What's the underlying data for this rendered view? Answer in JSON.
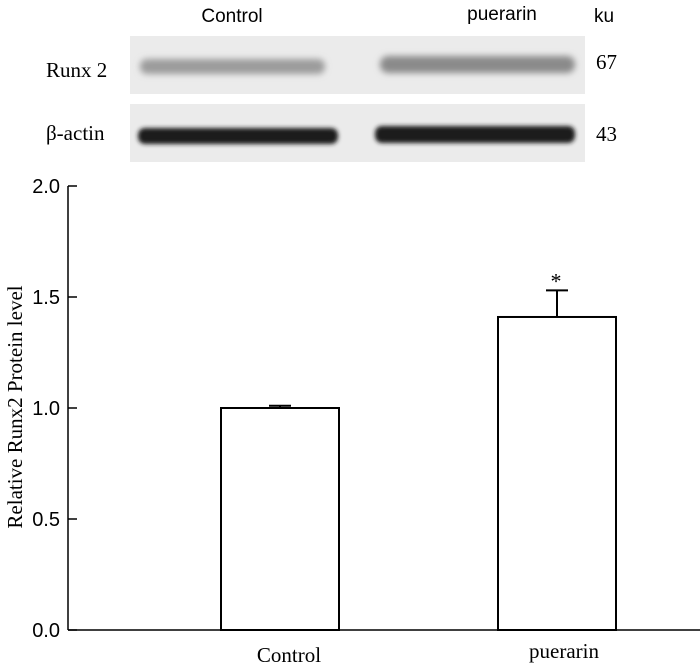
{
  "blot": {
    "col_labels": [
      "Control",
      "puerarin"
    ],
    "unit_label": "ku",
    "rows": [
      {
        "label": "Runx 2",
        "mw": "67"
      },
      {
        "label": "β-actin",
        "mw": "43"
      }
    ]
  },
  "chart_data": {
    "type": "bar",
    "categories": [
      "Control",
      "puerarin"
    ],
    "values": [
      1.0,
      1.41
    ],
    "errors": [
      0.01,
      0.12
    ],
    "annotations": [
      "",
      "*"
    ],
    "ylabel": "Relative Runx2 Protein level",
    "xlabel": "",
    "ylim": [
      0,
      2.0
    ],
    "yticks": [
      "0.0",
      "0.5",
      "1.0",
      "1.5",
      "2.0"
    ],
    "grid": false,
    "bar_fill": "#ffffff",
    "bar_stroke": "#000000"
  }
}
